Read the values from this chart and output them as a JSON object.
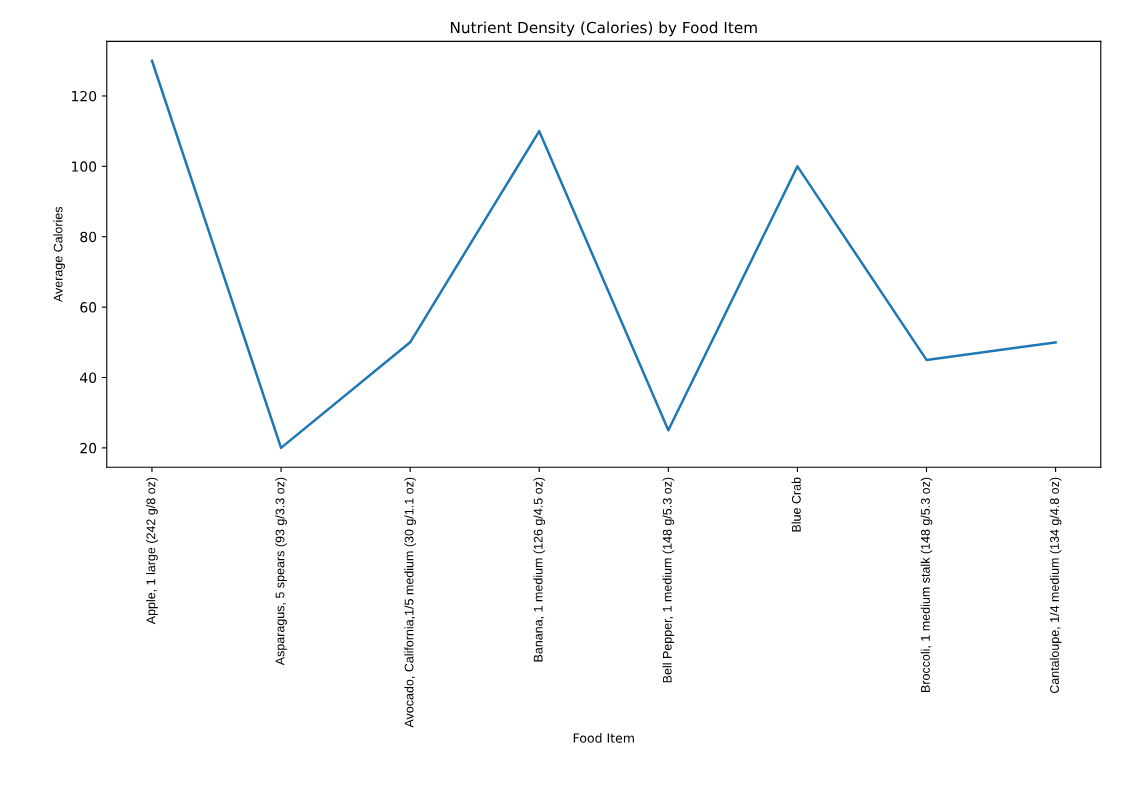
{
  "chart_data": {
    "type": "line",
    "title": "Nutrient Density (Calories) by Food Item",
    "xlabel": "Food Item",
    "ylabel": "Average Calories",
    "categories": [
      "Apple, 1 large (242 g/8 oz)",
      "Asparagus, 5 spears (93 g/3.3 oz)",
      "Avocado, California,1/5 medium (30 g/1.1 oz)",
      "Banana, 1 medium (126 g/4.5 oz)",
      "Bell Pepper, 1 medium (148 g/5.3 oz)",
      "Blue Crab",
      "Broccoli, 1 medium stalk (148 g/5.3 oz)",
      "Cantaloupe, 1/4 medium (134 g/4.8 oz)"
    ],
    "series": [
      {
        "color": "#1f77b4",
        "values": [
          130,
          20,
          50,
          110,
          25,
          100,
          45,
          50
        ]
      }
    ],
    "ylim": [
      14.5,
      135.5
    ],
    "yticks": [
      20,
      40,
      60,
      80,
      100,
      120
    ],
    "grid": false,
    "legend": false
  }
}
